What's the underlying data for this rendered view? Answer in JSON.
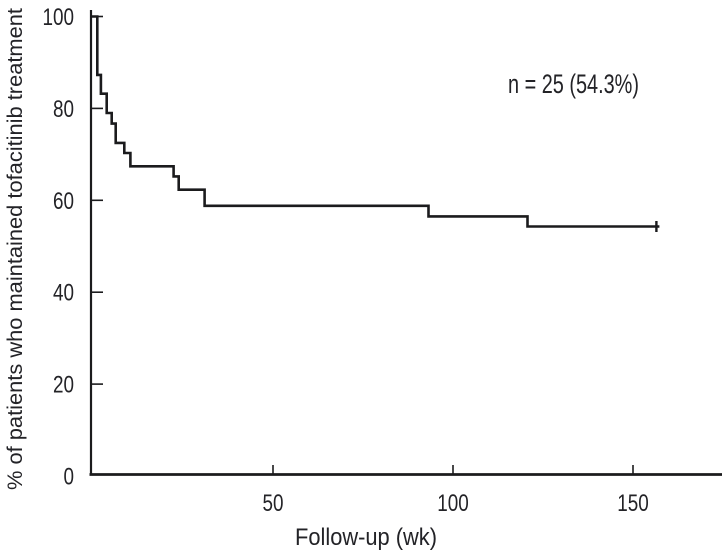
{
  "figure": {
    "background": "#ffffff",
    "text_color": "#232327",
    "line_color": "#1b1b1d"
  },
  "chart_data": {
    "type": "line",
    "subtype": "kaplan_meier_step_curve",
    "title": "",
    "xlabel": "Follow-up (wk)",
    "ylabel": "% of patients who maintained tofacitinib treatment",
    "annotation": "n = 25 (54.3%)",
    "xlim": [
      0,
      175
    ],
    "ylim": [
      0,
      100
    ],
    "x_tick_labels": [
      "50",
      "100",
      "150"
    ],
    "x_tick_values": [
      50,
      100,
      150
    ],
    "y_tick_labels": [
      "0",
      "20",
      "40",
      "60",
      "80",
      "100"
    ],
    "y_tick_values": [
      0,
      20,
      40,
      60,
      80,
      100
    ],
    "grid": false,
    "legend": null,
    "series": [
      {
        "name": "patients maintaining tofacitinib treatment",
        "start": {
          "x": 0,
          "y": 100
        },
        "drops": [
          [
            1.2,
            87.3
          ],
          [
            2.2,
            83.2
          ],
          [
            3.8,
            79.0
          ],
          [
            5.2,
            76.7
          ],
          [
            6.3,
            72.5
          ],
          [
            8.7,
            70.3
          ],
          [
            10.4,
            67.4
          ],
          [
            22.4,
            65.2
          ],
          [
            23.8,
            62.3
          ],
          [
            31.0,
            58.8
          ],
          [
            93.2,
            56.5
          ],
          [
            120.7,
            54.3
          ]
        ],
        "end_x": 156.5,
        "final_percent": 54.3,
        "censor_marks": [
          [
            156.5,
            54.3
          ]
        ]
      }
    ]
  }
}
